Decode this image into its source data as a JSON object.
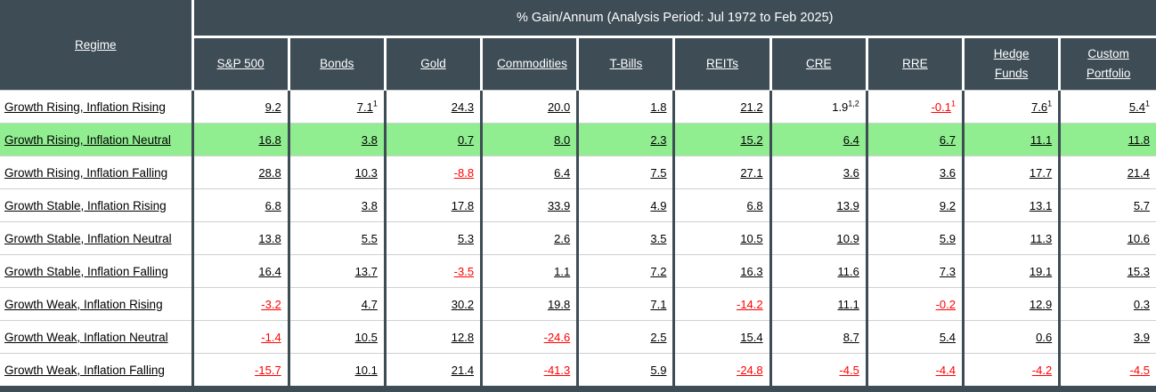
{
  "table": {
    "title": "% Gain/Annum (Analysis Period: Jul 1972 to Feb 2025)",
    "regime_header": "Regime",
    "columns": [
      "S&P 500",
      "Bonds",
      "Gold",
      "Commodities",
      "T-Bills",
      "REITs",
      "CRE",
      "RRE",
      "Hedge Funds",
      "Custom Portfolio"
    ],
    "rows": [
      {
        "regime": "Growth Rising, Inflation Rising",
        "highlight": false,
        "cells": [
          {
            "v": "9.2"
          },
          {
            "v": "7.1",
            "sup": "1"
          },
          {
            "v": "24.3"
          },
          {
            "v": "20.0"
          },
          {
            "v": "1.8"
          },
          {
            "v": "21.2"
          },
          {
            "v": "1.9",
            "sup": "1,2",
            "nound": true
          },
          {
            "v": "-0.1",
            "sup": "1",
            "neg": true
          },
          {
            "v": "7.6",
            "sup": "1"
          },
          {
            "v": "5.4",
            "sup": "1"
          }
        ]
      },
      {
        "regime": "Growth Rising, Inflation Neutral",
        "highlight": true,
        "cells": [
          {
            "v": "16.8"
          },
          {
            "v": "3.8"
          },
          {
            "v": "0.7"
          },
          {
            "v": "8.0"
          },
          {
            "v": "2.3"
          },
          {
            "v": "15.2"
          },
          {
            "v": "6.4"
          },
          {
            "v": "6.7"
          },
          {
            "v": "11.1"
          },
          {
            "v": "11.8"
          }
        ]
      },
      {
        "regime": "Growth Rising, Inflation Falling",
        "highlight": false,
        "cells": [
          {
            "v": "28.8"
          },
          {
            "v": "10.3"
          },
          {
            "v": "-8.8",
            "neg": true
          },
          {
            "v": "6.4"
          },
          {
            "v": "7.5"
          },
          {
            "v": "27.1"
          },
          {
            "v": "3.6"
          },
          {
            "v": "3.6"
          },
          {
            "v": "17.7"
          },
          {
            "v": "21.4"
          }
        ]
      },
      {
        "regime": "Growth Stable, Inflation Rising",
        "highlight": false,
        "cells": [
          {
            "v": "6.8"
          },
          {
            "v": "3.8"
          },
          {
            "v": "17.8"
          },
          {
            "v": "33.9"
          },
          {
            "v": "4.9"
          },
          {
            "v": "6.8"
          },
          {
            "v": "13.9"
          },
          {
            "v": "9.2"
          },
          {
            "v": "13.1"
          },
          {
            "v": "5.7"
          }
        ]
      },
      {
        "regime": "Growth Stable, Inflation Neutral",
        "highlight": false,
        "cells": [
          {
            "v": "13.8"
          },
          {
            "v": "5.5"
          },
          {
            "v": "5.3"
          },
          {
            "v": "2.6"
          },
          {
            "v": "3.5"
          },
          {
            "v": "10.5"
          },
          {
            "v": "10.9"
          },
          {
            "v": "5.9"
          },
          {
            "v": "11.3"
          },
          {
            "v": "10.6"
          }
        ]
      },
      {
        "regime": "Growth Stable, Inflation Falling",
        "highlight": false,
        "cells": [
          {
            "v": "16.4"
          },
          {
            "v": "13.7"
          },
          {
            "v": "-3.5",
            "neg": true
          },
          {
            "v": "1.1"
          },
          {
            "v": "7.2"
          },
          {
            "v": "16.3"
          },
          {
            "v": "11.6"
          },
          {
            "v": "7.3"
          },
          {
            "v": "19.1"
          },
          {
            "v": "15.3"
          }
        ]
      },
      {
        "regime": "Growth Weak, Inflation Rising",
        "highlight": false,
        "cells": [
          {
            "v": "-3.2",
            "neg": true
          },
          {
            "v": "4.7"
          },
          {
            "v": "30.2"
          },
          {
            "v": "19.8"
          },
          {
            "v": "7.1"
          },
          {
            "v": "-14.2",
            "neg": true
          },
          {
            "v": "11.1"
          },
          {
            "v": "-0.2",
            "neg": true
          },
          {
            "v": "12.9"
          },
          {
            "v": "0.3"
          }
        ]
      },
      {
        "regime": "Growth Weak, Inflation Neutral",
        "highlight": false,
        "cells": [
          {
            "v": "-1.4",
            "neg": true
          },
          {
            "v": "10.5"
          },
          {
            "v": "12.8"
          },
          {
            "v": "-24.6",
            "neg": true
          },
          {
            "v": "2.5"
          },
          {
            "v": "15.4"
          },
          {
            "v": "8.7"
          },
          {
            "v": "5.4"
          },
          {
            "v": "0.6"
          },
          {
            "v": "3.9"
          }
        ]
      },
      {
        "regime": "Growth Weak, Inflation Falling",
        "highlight": false,
        "cells": [
          {
            "v": "-15.7",
            "neg": true
          },
          {
            "v": "10.1"
          },
          {
            "v": "21.4"
          },
          {
            "v": "-41.3",
            "neg": true
          },
          {
            "v": "5.9"
          },
          {
            "v": "-24.8",
            "neg": true
          },
          {
            "v": "-4.5",
            "neg": true
          },
          {
            "v": "-4.4",
            "neg": true
          },
          {
            "v": "-4.2",
            "neg": true
          },
          {
            "v": "-4.5",
            "neg": true
          }
        ]
      }
    ]
  },
  "chart_data": {
    "type": "table",
    "title": "% Gain/Annum (Analysis Period: Jul 1972 to Feb 2025)",
    "row_header": "Regime",
    "columns": [
      "S&P 500",
      "Bonds",
      "Gold",
      "Commodities",
      "T-Bills",
      "REITs",
      "CRE",
      "RRE",
      "Hedge Funds",
      "Custom Portfolio"
    ],
    "rows": [
      {
        "regime": "Growth Rising, Inflation Rising",
        "highlighted": false,
        "values": [
          9.2,
          7.1,
          24.3,
          20.0,
          1.8,
          21.2,
          1.9,
          -0.1,
          7.6,
          5.4
        ]
      },
      {
        "regime": "Growth Rising, Inflation Neutral",
        "highlighted": true,
        "values": [
          16.8,
          3.8,
          0.7,
          8.0,
          2.3,
          15.2,
          6.4,
          6.7,
          11.1,
          11.8
        ]
      },
      {
        "regime": "Growth Rising, Inflation Falling",
        "highlighted": false,
        "values": [
          28.8,
          10.3,
          -8.8,
          6.4,
          7.5,
          27.1,
          3.6,
          3.6,
          17.7,
          21.4
        ]
      },
      {
        "regime": "Growth Stable, Inflation Rising",
        "highlighted": false,
        "values": [
          6.8,
          3.8,
          17.8,
          33.9,
          4.9,
          6.8,
          13.9,
          9.2,
          13.1,
          5.7
        ]
      },
      {
        "regime": "Growth Stable, Inflation Neutral",
        "highlighted": false,
        "values": [
          13.8,
          5.5,
          5.3,
          2.6,
          3.5,
          10.5,
          10.9,
          5.9,
          11.3,
          10.6
        ]
      },
      {
        "regime": "Growth Stable, Inflation Falling",
        "highlighted": false,
        "values": [
          16.4,
          13.7,
          -3.5,
          1.1,
          7.2,
          16.3,
          11.6,
          7.3,
          19.1,
          15.3
        ]
      },
      {
        "regime": "Growth Weak, Inflation Rising",
        "highlighted": false,
        "values": [
          -3.2,
          4.7,
          30.2,
          19.8,
          7.1,
          -14.2,
          11.1,
          -0.2,
          12.9,
          0.3
        ]
      },
      {
        "regime": "Growth Weak, Inflation Neutral",
        "highlighted": false,
        "values": [
          -1.4,
          10.5,
          12.8,
          -24.6,
          2.5,
          15.4,
          8.7,
          5.4,
          0.6,
          3.9
        ]
      },
      {
        "regime": "Growth Weak, Inflation Falling",
        "highlighted": false,
        "values": [
          -15.7,
          10.1,
          21.4,
          -41.3,
          5.9,
          -24.8,
          -4.5,
          -4.4,
          -4.2,
          -4.5
        ]
      }
    ],
    "footnote_markers": {
      "Bonds row 1": "1",
      "CRE row 1": "1,2",
      "RRE row 1": "1",
      "Hedge Funds row 1": "1",
      "Custom Portfolio row 1": "1"
    },
    "legend_position": "none",
    "grid": true
  },
  "colors": {
    "header_bg": "#3D4C55",
    "highlight_green": "#90EE90",
    "negative_red": "#FF0000",
    "header_text": "#FFFFFF",
    "body_text": "#000000",
    "grid_line": "#D0D0D0"
  }
}
